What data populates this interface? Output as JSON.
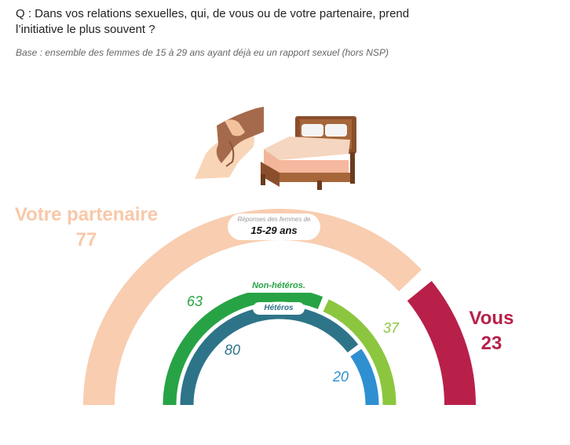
{
  "header": {
    "question": "Q : Dans vos relations sexuelles, qui, de vous ou de votre partenaire, prend l’initiative le plus souvent ?",
    "base": "Base : ensemble des femmes de 15 à 29 ans ayant déjà eu un rapport sexuel (hors NSP)"
  },
  "bubble": {
    "caption": "Réponses des femmes de",
    "group": "15-29 ans"
  },
  "labels": {
    "partner": "Votre partenaire",
    "vous": "Vous"
  },
  "colors": {
    "partner_total": "#f8cdb0",
    "vous_total": "#b8204a",
    "nonhetero_partner": "#27a345",
    "nonhetero_vous": "#8cc63f",
    "hetero_partner": "#2e7488",
    "hetero_vous": "#2e8fd1"
  },
  "illustration": {
    "icons": [
      "holding-hands-icon",
      "bed-icon"
    ]
  },
  "chart_data": {
    "type": "semi-donut",
    "categories": [
      "Votre partenaire",
      "Vous"
    ],
    "series": [
      {
        "name": "15-29 ans",
        "values": [
          77,
          23
        ]
      },
      {
        "name": "Non-hétéros.",
        "values": [
          63,
          37
        ]
      },
      {
        "name": "Hétéros",
        "values": [
          80,
          20
        ]
      }
    ]
  }
}
